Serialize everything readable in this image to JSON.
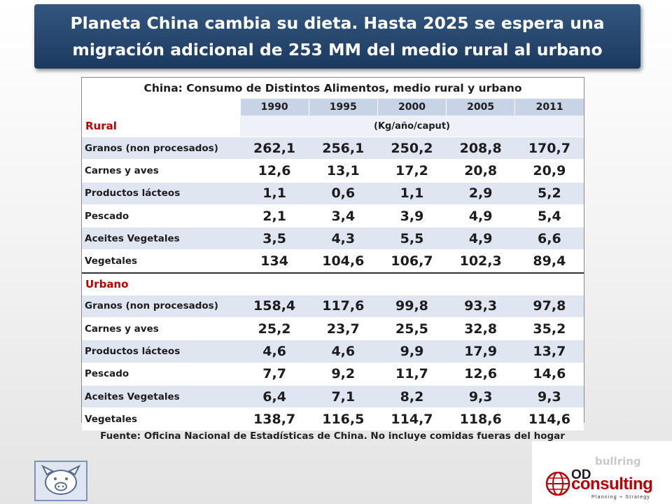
{
  "slide": {
    "title_line1": "Planeta China cambia su dieta. Hasta 2025 se espera una",
    "title_line2": "migración adicional de 253 MM del medio rural al urbano",
    "source": "Fuente: Oficina Nacional de Estadísticas de China. No incluye comidas fueras del hogar"
  },
  "table": {
    "caption": "China: Consumo de Distintos Alimentos, medio rural y urbano",
    "years": [
      "1990",
      "1995",
      "2000",
      "2005",
      "2011"
    ],
    "unit": "(Kg/año/caput)",
    "sections": [
      {
        "name": "Rural",
        "rows": [
          {
            "label": "Granos (non procesados)",
            "values": [
              "262,1",
              "256,1",
              "250,2",
              "208,8",
              "170,7"
            ]
          },
          {
            "label": "Carnes y aves",
            "values": [
              "12,6",
              "13,1",
              "17,2",
              "20,8",
              "20,9"
            ]
          },
          {
            "label": "Productos lácteos",
            "values": [
              "1,1",
              "0,6",
              "1,1",
              "2,9",
              "5,2"
            ]
          },
          {
            "label": "Pescado",
            "values": [
              "2,1",
              "3,4",
              "3,9",
              "4,9",
              "5,4"
            ]
          },
          {
            "label": "Aceites Vegetales",
            "values": [
              "3,5",
              "4,3",
              "5,5",
              "4,9",
              "6,6"
            ]
          },
          {
            "label": "Vegetales",
            "values": [
              "134",
              "104,6",
              "106,7",
              "102,3",
              "89,4"
            ]
          }
        ]
      },
      {
        "name": "Urbano",
        "rows": [
          {
            "label": "Granos (non procesados)",
            "values": [
              "158,4",
              "117,6",
              "99,8",
              "93,3",
              "97,8"
            ]
          },
          {
            "label": "Carnes y aves",
            "values": [
              "25,2",
              "23,7",
              "25,5",
              "32,8",
              "35,2"
            ]
          },
          {
            "label": "Productos lácteos",
            "values": [
              "4,6",
              "4,6",
              "9,9",
              "17,9",
              "13,7"
            ]
          },
          {
            "label": "Pescado",
            "values": [
              "7,7",
              "9,2",
              "11,7",
              "12,6",
              "14,6"
            ]
          },
          {
            "label": "Aceites Vegetales",
            "values": [
              "6,4",
              "7,1",
              "8,2",
              "9,3",
              "9,3"
            ]
          },
          {
            "label": "Vegetales",
            "values": [
              "138,7",
              "116,5",
              "114,7",
              "118,6",
              "114,6"
            ]
          }
        ]
      }
    ]
  },
  "logos": {
    "pig": {
      "icon": "pig-face-icon"
    },
    "od": {
      "brand_top": "OD",
      "brand_name": "consulting",
      "tagline": "Planning + Strategy",
      "faded_text": "bullring",
      "icon": "globe-icon",
      "brand_color": "#c00000"
    }
  },
  "colors": {
    "title_bg": "#1f3f66",
    "section_red": "#c00000",
    "band_blue": "#dfe5f1",
    "header_blue": "#c8d3e6"
  }
}
